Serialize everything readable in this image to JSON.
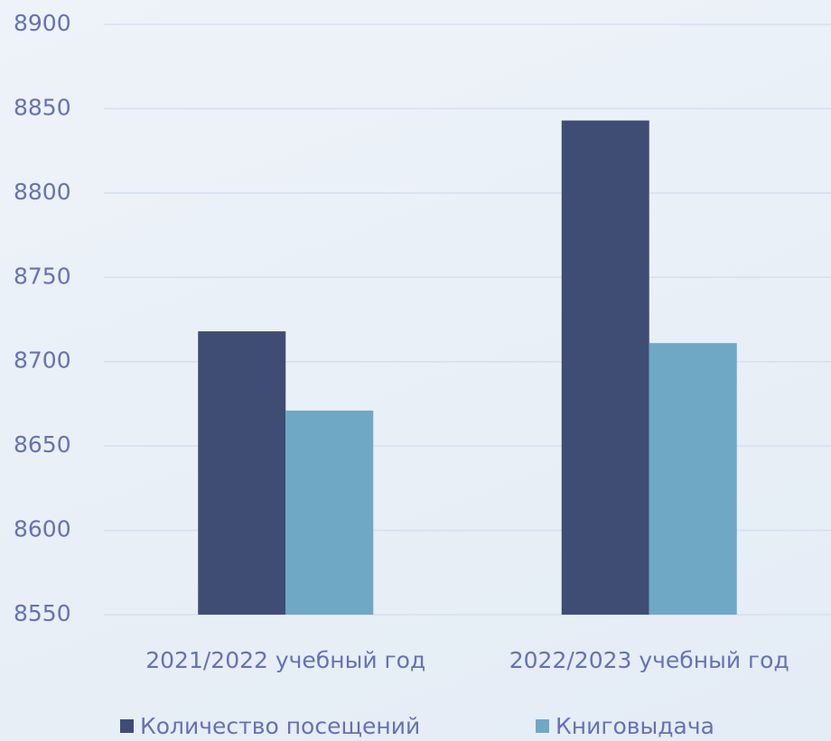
{
  "chart_data": {
    "type": "bar",
    "categories": [
      "2021/2022 учебный год",
      "2022/2023 учебный год"
    ],
    "series": [
      {
        "name": "Количество посещений",
        "color": "#3f4d75",
        "values": [
          8718,
          8843
        ]
      },
      {
        "name": "Книговыдача",
        "color": "#6fa8c5",
        "values": [
          8671,
          8711
        ]
      }
    ],
    "ylim": [
      8550,
      8900
    ],
    "yticks": [
      8550,
      8600,
      8650,
      8700,
      8750,
      8800,
      8850,
      8900
    ],
    "grid": true,
    "legend": "bottom"
  }
}
